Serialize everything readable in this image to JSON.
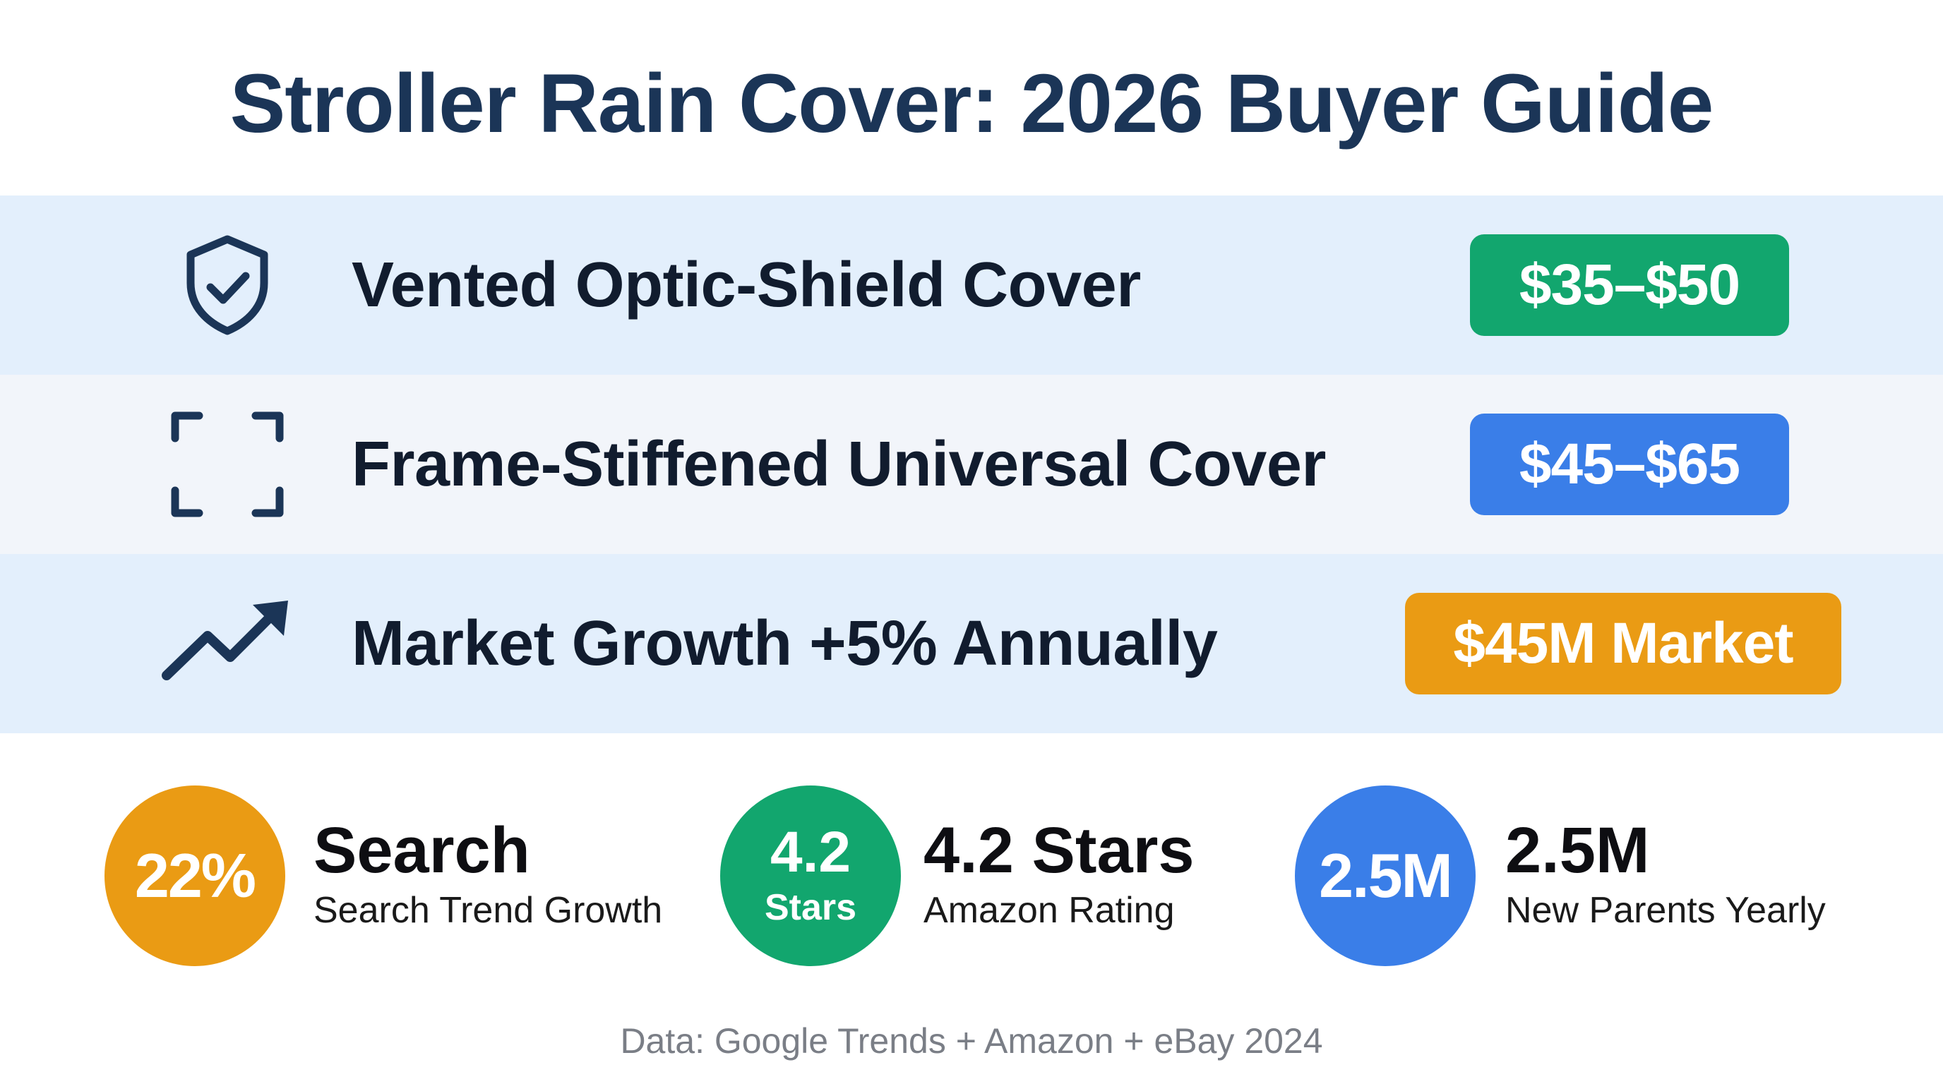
{
  "title": "Stroller Rain Cover: 2026 Buyer Guide",
  "rows": [
    {
      "icon": "shield-check-icon",
      "label": "Vented Optic-Shield Cover",
      "badge": "$35–$50",
      "badge_color": "#12a66e"
    },
    {
      "icon": "frame-corners-icon",
      "label": "Frame-Stiffened Universal Cover",
      "badge": "$45–$65",
      "badge_color": "#3a7ee8"
    },
    {
      "icon": "trending-up-icon",
      "label": "Market Growth +5% Annually",
      "badge": "$45M Market",
      "badge_color": "#ea9b14"
    }
  ],
  "stats": [
    {
      "circle": "22%",
      "heading": "Search",
      "sub": "Search Trend Growth",
      "color": "#ea9b14"
    },
    {
      "circle_big": "4.2",
      "circle_small": "Stars",
      "heading": "4.2 Stars",
      "sub": "Amazon Rating",
      "color": "#12a66e"
    },
    {
      "circle": "2.5M",
      "heading": "2.5M",
      "sub": "New Parents Yearly",
      "color": "#3a7ee8"
    }
  ],
  "footer": "Data: Google Trends + Amazon + eBay 2024",
  "colors": {
    "title": "#1b3557",
    "row_band": "#e3effc",
    "row_band_alt": "#f2f5fa",
    "icon": "#1b3557"
  }
}
